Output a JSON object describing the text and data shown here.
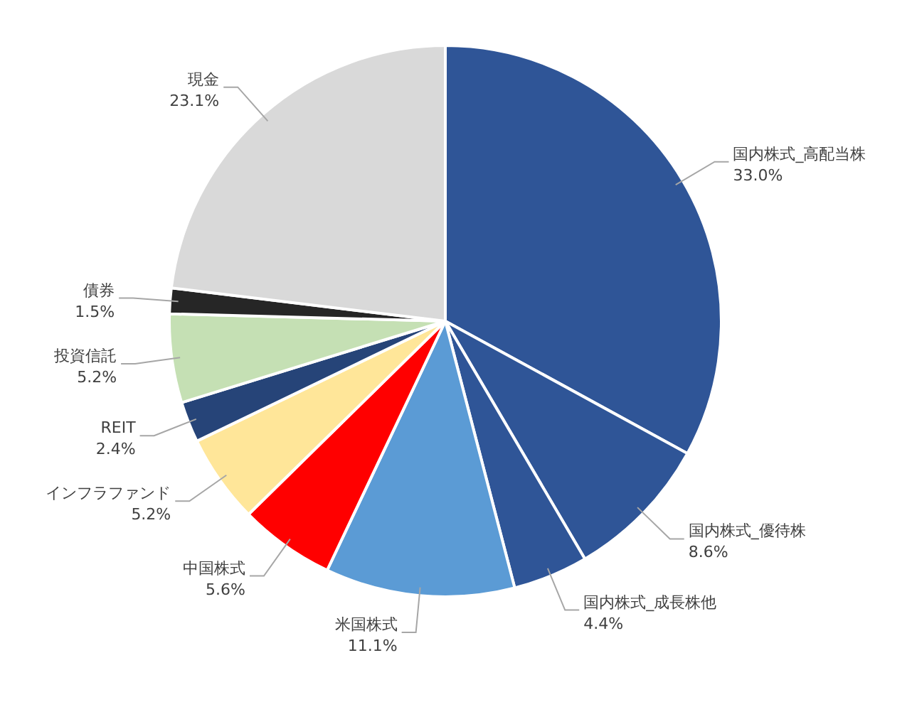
{
  "chart_data": {
    "type": "pie",
    "categories": [
      "国内株式_高配当株",
      "国内株式_優待株",
      "国内株式_成長株他",
      "米国株式",
      "中国株式",
      "インフラファンド",
      "REIT",
      "投資信託",
      "債券",
      "現金"
    ],
    "values": [
      33.0,
      8.6,
      4.4,
      11.1,
      5.6,
      5.2,
      2.4,
      5.2,
      1.5,
      23.1
    ],
    "value_labels": [
      "33.0%",
      "8.6%",
      "4.4%",
      "11.1%",
      "5.6%",
      "5.2%",
      "2.4%",
      "5.2%",
      "1.5%",
      "23.1%"
    ],
    "colors": [
      "#2f5597",
      "#2f5597",
      "#2f5597",
      "#5b9bd5",
      "#ff0000",
      "#ffe699",
      "#264478",
      "#c5e0b4",
      "#262626",
      "#d9d9d9"
    ]
  }
}
